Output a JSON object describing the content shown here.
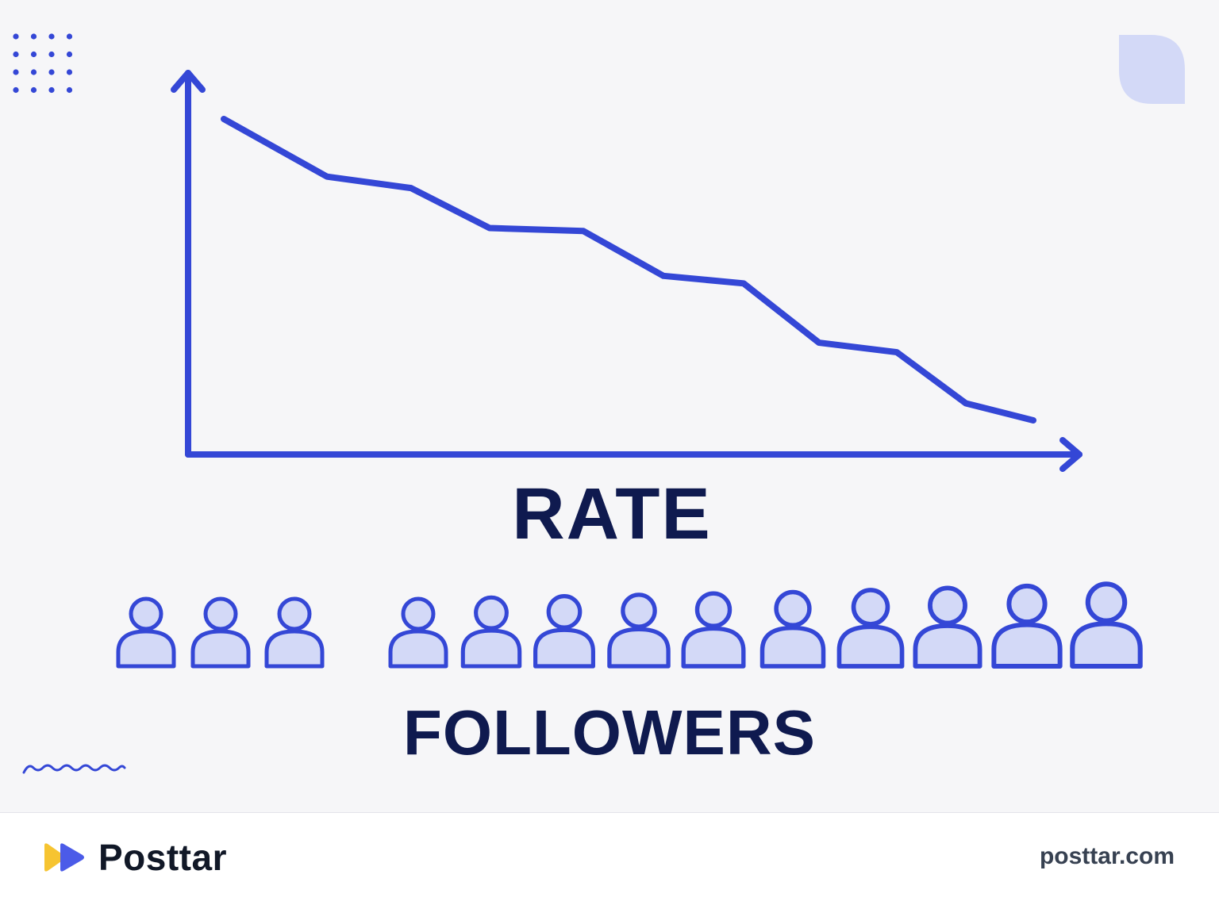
{
  "labels": {
    "rate": "RATE",
    "followers": "FOLLOWERS"
  },
  "chart_data": {
    "type": "line",
    "trend": "decreasing",
    "points_norm": [
      1.0,
      0.824,
      0.789,
      0.667,
      0.658,
      0.521,
      0.498,
      0.317,
      0.288,
      0.132,
      0.08
    ],
    "color": "#3447d6"
  },
  "followers": {
    "count": 12,
    "group_split": 3
  },
  "footer": {
    "brand": "Posttar",
    "url": "posttar.com"
  },
  "colors": {
    "accent": "#3447d6",
    "person_fill": "#d3d9f7",
    "text_dark": "#0f1a4f",
    "decor_leaf": "#d3d9f7",
    "logo_yellow": "#f6c431",
    "logo_blue": "#4b5be8"
  },
  "icons": {
    "logo": "play-forward-icon",
    "dots": "dot-grid",
    "squiggle": "wave-line",
    "leaf": "leaf-shape"
  }
}
